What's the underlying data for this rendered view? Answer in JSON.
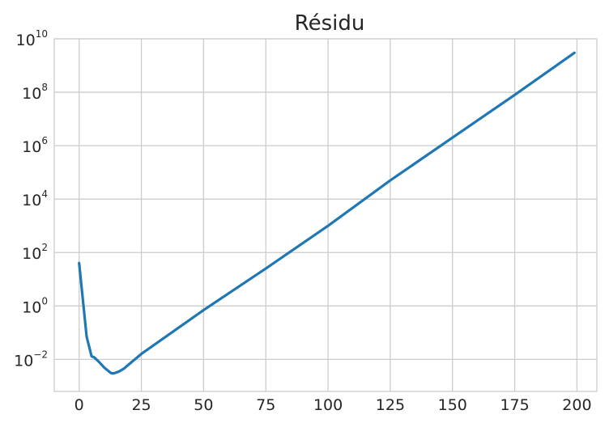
{
  "chart_data": {
    "type": "line",
    "title": "Résidu",
    "xlabel": "",
    "ylabel": "",
    "xlim": [
      -10,
      208
    ],
    "ylim_log10": [
      -3.2,
      10
    ],
    "yscale": "log",
    "grid": true,
    "x_ticks": [
      0,
      25,
      50,
      75,
      100,
      125,
      150,
      175,
      200
    ],
    "y_ticks": [
      {
        "base": "10",
        "exp": "10",
        "value": 10000000000.0
      },
      {
        "base": "10",
        "exp": "8",
        "value": 100000000.0
      },
      {
        "base": "10",
        "exp": "6",
        "value": 1000000.0
      },
      {
        "base": "10",
        "exp": "4",
        "value": 10000.0
      },
      {
        "base": "10",
        "exp": "2",
        "value": 100.0
      },
      {
        "base": "10",
        "exp": "0",
        "value": 1
      },
      {
        "base": "10",
        "exp": "−2",
        "value": 0.01
      }
    ],
    "series": [
      {
        "color": "#1f77b4",
        "x": [
          0,
          3,
          5,
          6,
          8,
          10,
          12,
          13,
          14,
          16,
          18,
          20,
          25,
          50,
          75,
          100,
          125,
          150,
          175,
          199
        ],
        "y": [
          40,
          0.07,
          0.013,
          0.012,
          0.008,
          0.005,
          0.0035,
          0.003,
          0.003,
          0.0035,
          0.0045,
          0.0065,
          0.016,
          0.7,
          25,
          1000,
          50000,
          2000000,
          80000000,
          3000000000
        ]
      }
    ]
  }
}
